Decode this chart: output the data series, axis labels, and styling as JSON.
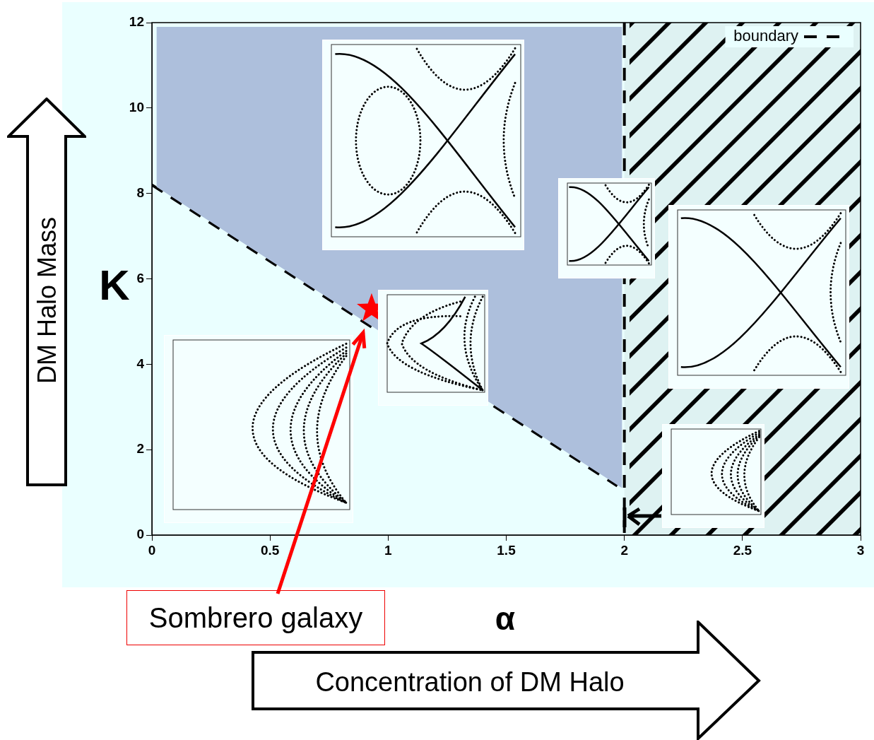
{
  "chart_data": {
    "type": "area",
    "xlabel": "α",
    "ylabel": "K",
    "annotations": [
      "Sombrero galaxy",
      "DM Halo Mass",
      "Concentration of DM Halo"
    ],
    "series": [
      {
        "type": "area",
        "color": "#adbfdc",
        "x": [
          0.02,
          1.99,
          1.99,
          0.02
        ],
        "values": [
          11.9,
          11.9,
          1.1,
          8.15
        ]
      },
      {
        "type": "line",
        "name": "boundary",
        "color": "#000000",
        "line_style": "dashed",
        "x": [
          0,
          1.97
        ],
        "values": [
          8.2,
          1.15
        ]
      },
      {
        "type": "scatter",
        "color": "#ff0000",
        "marker": "star",
        "x": [
          0.93
        ],
        "values": [
          5.3
        ]
      }
    ],
    "xlim": [
      0,
      3
    ],
    "ylim": [
      0,
      12
    ],
    "xticks": [
      0,
      0.5,
      1,
      1.5,
      2,
      2.5,
      3
    ],
    "yticks": [
      0,
      2,
      4,
      6,
      8,
      10,
      12
    ],
    "grid": false,
    "legend": "top right",
    "ref_lines": [
      {
        "axis": "x",
        "value": 2,
        "line_style": "dashed",
        "color": "#000000"
      }
    ],
    "bands": [
      {
        "axis": "x",
        "from": 2,
        "to": 3,
        "color": "#000000"
      }
    ]
  }
}
